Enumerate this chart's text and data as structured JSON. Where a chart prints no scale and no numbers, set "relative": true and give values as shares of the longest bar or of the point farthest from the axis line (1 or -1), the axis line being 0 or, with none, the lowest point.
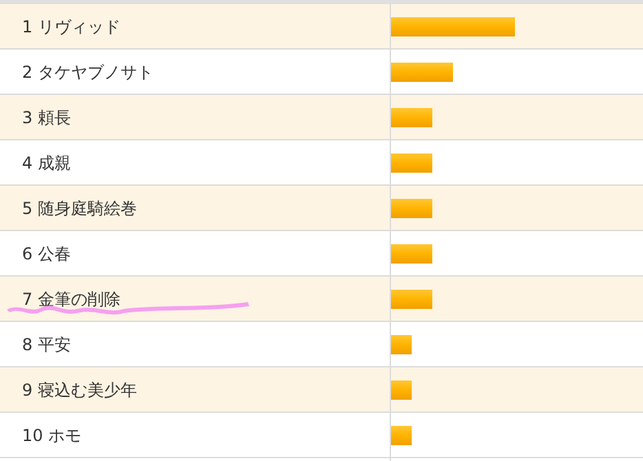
{
  "chart_data": {
    "type": "bar",
    "orientation": "horizontal",
    "relative": true,
    "categories": [
      "1 リヴィッド",
      "2 タケヤブノサト",
      "3 頼長",
      "4 成親",
      "5 随身庭騎絵巻",
      "6 公春",
      "7 金筆の削除",
      "8 平安",
      "9 寝込む美少年",
      "10 ホモ"
    ],
    "values": [
      1,
      0.5,
      0.333,
      0.333,
      0.333,
      0.333,
      0.333,
      0.167,
      0.167,
      0.167
    ],
    "color": "#ffb300"
  }
}
